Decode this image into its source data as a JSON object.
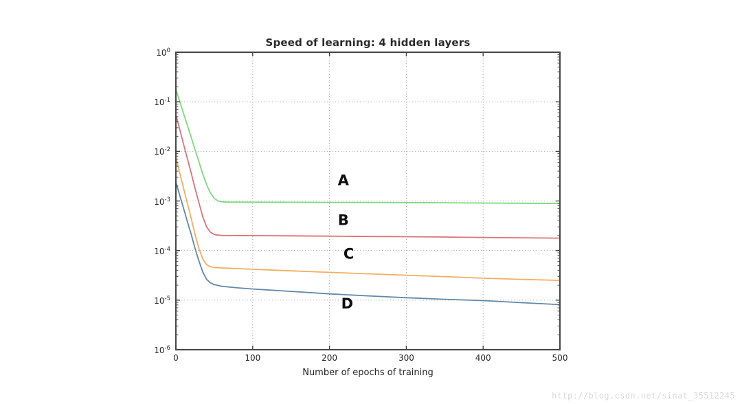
{
  "watermark": {
    "text": "http://blog.csdn.net/sinat_35512245"
  },
  "chart_data": {
    "type": "line",
    "title": "Speed of learning: 4 hidden layers",
    "xlabel": "Number of epochs of training",
    "ylabel": "",
    "x_ticks": [
      0,
      100,
      200,
      300,
      400,
      500
    ],
    "xlim": [
      0,
      500
    ],
    "y_scale": "log",
    "y_tick_exponents": [
      0,
      -1,
      -2,
      -3,
      -4,
      -5,
      -6
    ],
    "ylim": [
      1e-06,
      1
    ],
    "grid": "dotted gray gridlines at every y decade and every x tick",
    "legend_position": "none (bold letter annotations beside each curve)",
    "series": [
      {
        "name": "A",
        "color": "#7fd87f",
        "label_at": {
          "x": 218,
          "y": 0.0026
        },
        "points": [
          [
            0,
            0.178
          ],
          [
            5,
            0.102
          ],
          [
            10,
            0.058
          ],
          [
            15,
            0.033
          ],
          [
            20,
            0.019
          ],
          [
            25,
            0.0108
          ],
          [
            30,
            0.0062
          ],
          [
            35,
            0.0035
          ],
          [
            40,
            0.00214
          ],
          [
            45,
            0.00145
          ],
          [
            50,
            0.00112
          ],
          [
            55,
            0.001
          ],
          [
            60,
            0.00096
          ],
          [
            70,
            0.00095
          ],
          [
            80,
            0.00095
          ],
          [
            100,
            0.000945
          ],
          [
            150,
            0.00094
          ],
          [
            200,
            0.000935
          ],
          [
            250,
            0.000935
          ],
          [
            300,
            0.00093
          ],
          [
            350,
            0.00092
          ],
          [
            400,
            0.00091
          ],
          [
            450,
            0.0009
          ],
          [
            500,
            0.00089
          ]
        ]
      },
      {
        "name": "B",
        "color": "#d9737c",
        "label_at": {
          "x": 218,
          "y": 0.00041
        },
        "points": [
          [
            0,
            0.055
          ],
          [
            5,
            0.0278
          ],
          [
            10,
            0.014
          ],
          [
            15,
            0.0071
          ],
          [
            20,
            0.0036
          ],
          [
            25,
            0.0018
          ],
          [
            30,
            0.00093
          ],
          [
            35,
            0.00048
          ],
          [
            40,
            0.0003
          ],
          [
            45,
            0.000234
          ],
          [
            50,
            0.000211
          ],
          [
            55,
            0.000205
          ],
          [
            60,
            0.000202
          ],
          [
            80,
            0.0002
          ],
          [
            100,
            0.0002
          ],
          [
            150,
            0.000198
          ],
          [
            200,
            0.000195
          ],
          [
            250,
            0.000192
          ],
          [
            300,
            0.00019
          ],
          [
            350,
            0.000187
          ],
          [
            400,
            0.000184
          ],
          [
            450,
            0.000181
          ],
          [
            500,
            0.000178
          ]
        ]
      },
      {
        "name": "C",
        "color": "#f3ae5f",
        "label_at": {
          "x": 225,
          "y": 8.6e-05
        },
        "points": [
          [
            0,
            0.0076
          ],
          [
            5,
            0.0037
          ],
          [
            10,
            0.0018
          ],
          [
            15,
            0.00089
          ],
          [
            20,
            0.00044
          ],
          [
            25,
            0.00021
          ],
          [
            30,
            0.00011
          ],
          [
            35,
            6.8e-05
          ],
          [
            40,
            5.2e-05
          ],
          [
            45,
            4.7e-05
          ],
          [
            50,
            4.55e-05
          ],
          [
            60,
            4.45e-05
          ],
          [
            80,
            4.32e-05
          ],
          [
            100,
            4.2e-05
          ],
          [
            150,
            3.9e-05
          ],
          [
            200,
            3.63e-05
          ],
          [
            250,
            3.4e-05
          ],
          [
            300,
            3.18e-05
          ],
          [
            350,
            2.98e-05
          ],
          [
            400,
            2.77e-05
          ],
          [
            450,
            2.62e-05
          ],
          [
            500,
            2.5e-05
          ]
        ]
      },
      {
        "name": "D",
        "color": "#6188a9",
        "label_at": {
          "x": 223,
          "y": 8.5e-06
        },
        "points": [
          [
            0,
            0.0024
          ],
          [
            5,
            0.0013
          ],
          [
            10,
            0.00071
          ],
          [
            15,
            0.00038
          ],
          [
            20,
            0.00021
          ],
          [
            25,
            0.00011
          ],
          [
            30,
            6.2e-05
          ],
          [
            35,
            3.7e-05
          ],
          [
            40,
            2.62e-05
          ],
          [
            45,
            2.23e-05
          ],
          [
            50,
            2.05e-05
          ],
          [
            60,
            1.9e-05
          ],
          [
            80,
            1.77e-05
          ],
          [
            100,
            1.68e-05
          ],
          [
            150,
            1.5e-05
          ],
          [
            200,
            1.34e-05
          ],
          [
            250,
            1.22e-05
          ],
          [
            300,
            1.12e-05
          ],
          [
            350,
            1.04e-05
          ],
          [
            400,
            9.8e-06
          ],
          [
            450,
            8.9e-06
          ],
          [
            500,
            8.1e-06
          ]
        ]
      }
    ]
  }
}
